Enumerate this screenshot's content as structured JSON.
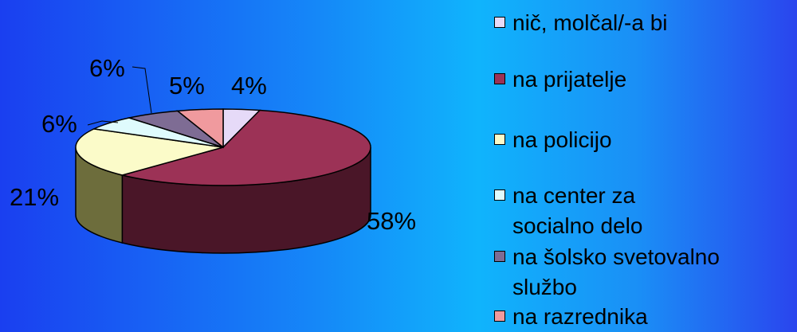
{
  "chart_data": {
    "type": "pie",
    "style": "3d",
    "title": "",
    "categories": [
      "nič, molčal/-a bi",
      "na prijatelje",
      "na policijo",
      "na center za\nsocialno delo",
      "na šolsko svetovalno\nslužbo",
      "na razrednika"
    ],
    "values": [
      4,
      58,
      21,
      6,
      6,
      5
    ],
    "value_labels": [
      "4%",
      "58%",
      "21%",
      "6%",
      "6%",
      "5%"
    ],
    "colors": [
      "#e6daf8",
      "#9c3256",
      "#fbfbc9",
      "#dffbfd",
      "#7e6c94",
      "#f09a9e"
    ],
    "side_colors": [
      "#7a6f8f",
      "#4a1628",
      "#6d6d3c",
      "#6b8a8c",
      "#3b2f4a",
      "#7a3a3e"
    ],
    "legend_placement": "right"
  }
}
